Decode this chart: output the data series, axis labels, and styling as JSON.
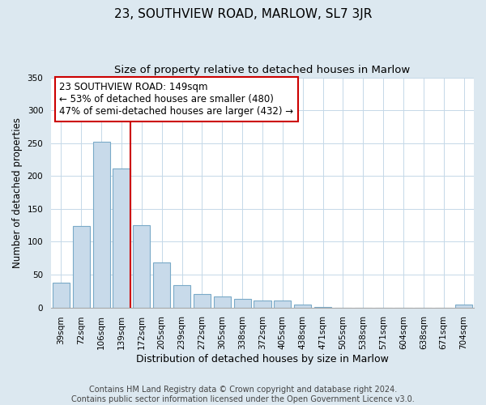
{
  "title": "23, SOUTHVIEW ROAD, MARLOW, SL7 3JR",
  "subtitle": "Size of property relative to detached houses in Marlow",
  "xlabel": "Distribution of detached houses by size in Marlow",
  "ylabel": "Number of detached properties",
  "categories": [
    "39sqm",
    "72sqm",
    "106sqm",
    "139sqm",
    "172sqm",
    "205sqm",
    "239sqm",
    "272sqm",
    "305sqm",
    "338sqm",
    "372sqm",
    "405sqm",
    "438sqm",
    "471sqm",
    "505sqm",
    "538sqm",
    "571sqm",
    "604sqm",
    "638sqm",
    "671sqm",
    "704sqm"
  ],
  "values": [
    38,
    124,
    252,
    212,
    125,
    68,
    34,
    21,
    17,
    13,
    11,
    10,
    5,
    1,
    0,
    0,
    0,
    0,
    0,
    0,
    4
  ],
  "bar_color": "#c8daea",
  "bar_edge_color": "#7aaac8",
  "vline_x_index": 3,
  "vline_color": "#cc0000",
  "annotation_text": "23 SOUTHVIEW ROAD: 149sqm\n← 53% of detached houses are smaller (480)\n47% of semi-detached houses are larger (432) →",
  "annotation_box_color": "white",
  "annotation_box_edge_color": "#cc0000",
  "ylim": [
    0,
    350
  ],
  "footer_text": "Contains HM Land Registry data © Crown copyright and database right 2024.\nContains public sector information licensed under the Open Government Licence v3.0.",
  "background_color": "#dce8f0",
  "plot_background_color": "white",
  "grid_color": "#c5d8e8",
  "title_fontsize": 11,
  "subtitle_fontsize": 9.5,
  "xlabel_fontsize": 9,
  "ylabel_fontsize": 8.5,
  "tick_fontsize": 7.5,
  "footer_fontsize": 7,
  "annotation_fontsize": 8.5
}
